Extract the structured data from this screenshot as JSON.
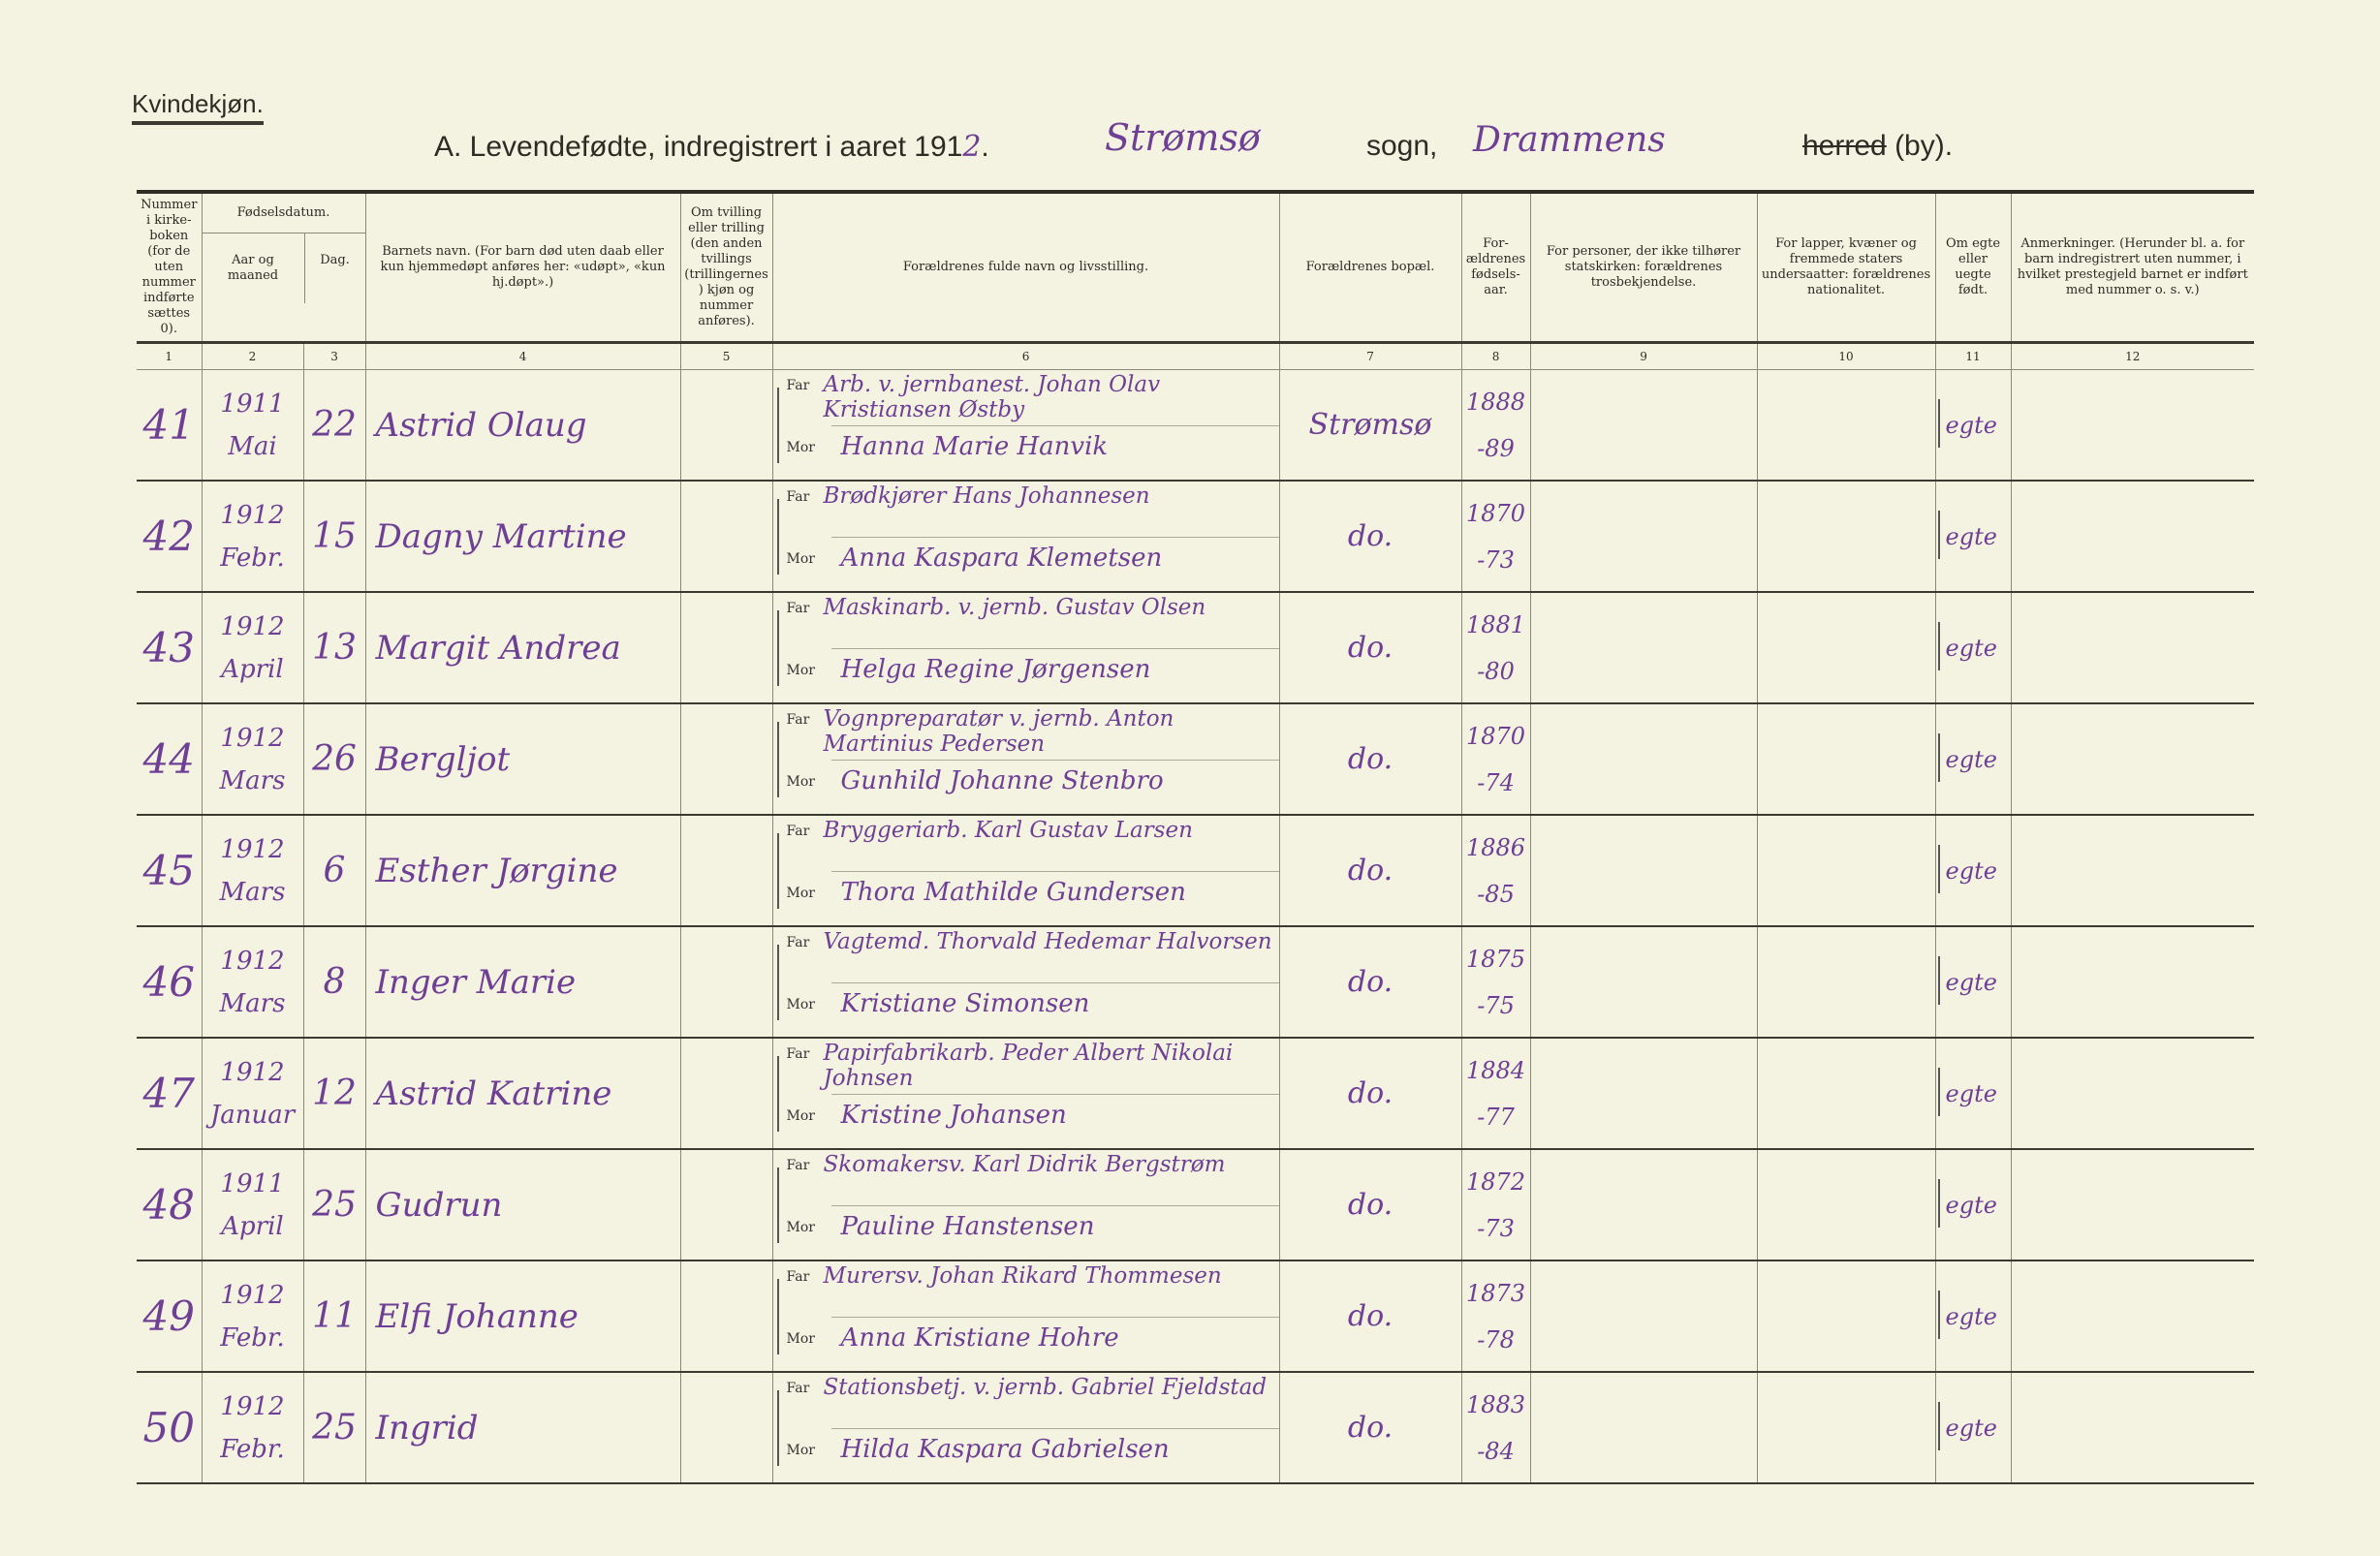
{
  "header": {
    "gender": "Kvindekjøn.",
    "title": "A. Levendefødte, indregistrert i aaret 191",
    "year_digit": "2",
    "parish": "Strømsø",
    "sogn_label": "sogn,",
    "town": "Drammens",
    "herred_label": "herred",
    "by_label": "(by)."
  },
  "columns": [
    {
      "num": "1",
      "label": "Nummer i kirke-boken (for de uten nummer indførte sættes 0)."
    },
    {
      "num": "2",
      "label": "Aar og maaned"
    },
    {
      "num": "3",
      "label": "Dag."
    },
    {
      "num": "4",
      "label": "Barnets navn. (For barn død uten daab eller kun hjemmedøpt anføres her: «udøpt», «kun hj.døpt».)"
    },
    {
      "num": "5",
      "label": "Om tvilling eller trilling (den anden tvillings (trillingernes) kjøn og nummer anføres)."
    },
    {
      "num": "6",
      "label": "Forældrenes fulde navn og livsstilling."
    },
    {
      "num": "7",
      "label": "Forældrenes bopæl."
    },
    {
      "num": "8",
      "label": "For-ældrenes fødsels-aar."
    },
    {
      "num": "9",
      "label": "For personer, der ikke tilhører statskirken: forældrenes trosbekjendelse."
    },
    {
      "num": "10",
      "label": "For lapper, kvæner og fremmede staters undersaatter: forældrenes nationalitet."
    },
    {
      "num": "11",
      "label": "Om egte eller uegte født."
    },
    {
      "num": "12",
      "label": "Anmerkninger. (Herunder bl. a. for barn indregistrert uten nummer, i hvilket prestegjeld barnet er indført med nummer o. s. v.)"
    }
  ],
  "group_header": "Fødselsdatum.",
  "far_label": "Far",
  "mor_label": "Mor",
  "rows": [
    {
      "nr": "41",
      "year": "1911",
      "month": "Mai",
      "day": "22",
      "name": "Astrid Olaug",
      "far": "Arb. v. jernbanest. Johan Olav Kristiansen Østby",
      "mor": "Hanna Marie Hanvik",
      "bopael": "Strømsø",
      "far_aar": "1888",
      "mor_aar": "-89",
      "egte": "egte"
    },
    {
      "nr": "42",
      "year": "1912",
      "month": "Febr.",
      "day": "15",
      "name": "Dagny Martine",
      "far": "Brødkjører Hans Johannesen",
      "mor": "Anna Kaspara Klemetsen",
      "bopael": "do.",
      "far_aar": "1870",
      "mor_aar": "-73",
      "egte": "egte"
    },
    {
      "nr": "43",
      "year": "1912",
      "month": "April",
      "day": "13",
      "name": "Margit Andrea",
      "far": "Maskinarb. v. jernb. Gustav Olsen",
      "mor": "Helga Regine Jørgensen",
      "bopael": "do.",
      "far_aar": "1881",
      "mor_aar": "-80",
      "egte": "egte"
    },
    {
      "nr": "44",
      "year": "1912",
      "month": "Mars",
      "day": "26",
      "name": "Bergljot",
      "far": "Vognpreparatør v. jernb. Anton Martinius Pedersen",
      "mor": "Gunhild Johanne Stenbro",
      "bopael": "do.",
      "far_aar": "1870",
      "mor_aar": "-74",
      "egte": "egte"
    },
    {
      "nr": "45",
      "year": "1912",
      "month": "Mars",
      "day": "6",
      "name": "Esther Jørgine",
      "far": "Bryggeriarb. Karl Gustav Larsen",
      "mor": "Thora Mathilde Gundersen",
      "bopael": "do.",
      "far_aar": "1886",
      "mor_aar": "-85",
      "egte": "egte"
    },
    {
      "nr": "46",
      "year": "1912",
      "month": "Mars",
      "day": "8",
      "name": "Inger Marie",
      "far": "Vagtemd. Thorvald Hedemar Halvorsen",
      "mor": "Kristiane Simonsen",
      "bopael": "do.",
      "far_aar": "1875",
      "mor_aar": "-75",
      "egte": "egte"
    },
    {
      "nr": "47",
      "year": "1912",
      "month": "Januar",
      "day": "12",
      "name": "Astrid Katrine",
      "far": "Papirfabrikarb. Peder Albert Nikolai Johnsen",
      "mor": "Kristine Johansen",
      "bopael": "do.",
      "far_aar": "1884",
      "mor_aar": "-77",
      "egte": "egte"
    },
    {
      "nr": "48",
      "year": "1911",
      "month": "April",
      "day": "25",
      "name": "Gudrun",
      "far": "Skomakersv. Karl Didrik Bergstrøm",
      "mor": "Pauline Hanstensen",
      "bopael": "do.",
      "far_aar": "1872",
      "mor_aar": "-73",
      "egte": "egte"
    },
    {
      "nr": "49",
      "year": "1912",
      "month": "Febr.",
      "day": "11",
      "name": "Elfi Johanne",
      "far": "Murersv. Johan Rikard Thommesen",
      "mor": "Anna Kristiane Hohre",
      "bopael": "do.",
      "far_aar": "1873",
      "mor_aar": "-78",
      "egte": "egte"
    },
    {
      "nr": "50",
      "year": "1912",
      "month": "Febr.",
      "day": "25",
      "name": "Ingrid",
      "far": "Stationsbetj. v. jernb. Gabriel Fjeldstad",
      "mor": "Hilda Kaspara Gabrielsen",
      "bopael": "do.",
      "far_aar": "1883",
      "mor_aar": "-84",
      "egte": "egte"
    }
  ],
  "colors": {
    "ink": "#6e3f94",
    "paper": "#f4f3e2",
    "print": "#2c2c24"
  }
}
